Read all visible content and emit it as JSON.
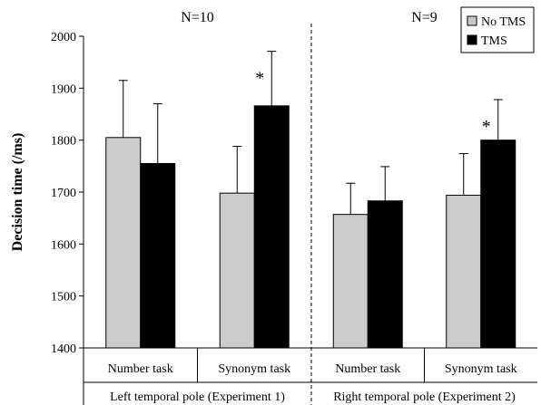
{
  "chart_data": {
    "type": "bar",
    "ylabel": "Decision time (/ms)",
    "ylim": [
      1400,
      2000
    ],
    "yticks": [
      "1400",
      "1500",
      "1600",
      "1700",
      "1800",
      "1900",
      "2000"
    ],
    "legend_position": "top-right",
    "grid": false,
    "panels": [
      {
        "n_label": "N=10",
        "group_label": "Left temporal pole (Experiment 1)",
        "categories": [
          "Number task",
          "Synonym task"
        ],
        "series": [
          {
            "name": "No TMS",
            "values": [
              1805,
              1698
            ],
            "error": [
              110,
              90
            ]
          },
          {
            "name": "TMS",
            "values": [
              1755,
              1866
            ],
            "error": [
              115,
              105
            ]
          }
        ],
        "annotations": [
          {
            "category_index": 1,
            "series_index": 1,
            "text": "*"
          }
        ]
      },
      {
        "n_label": "N=9",
        "group_label": "Right temporal pole (Experiment 2)",
        "categories": [
          "Number task",
          "Synonym task"
        ],
        "series": [
          {
            "name": "No TMS",
            "values": [
              1657,
              1694
            ],
            "error": [
              60,
              80
            ]
          },
          {
            "name": "TMS",
            "values": [
              1683,
              1800
            ],
            "error": [
              66,
              78
            ]
          }
        ],
        "annotations": [
          {
            "category_index": 1,
            "series_index": 1,
            "text": "*"
          }
        ]
      }
    ],
    "series_colors": {
      "No TMS": "#cccccc",
      "TMS": "#000000"
    }
  }
}
